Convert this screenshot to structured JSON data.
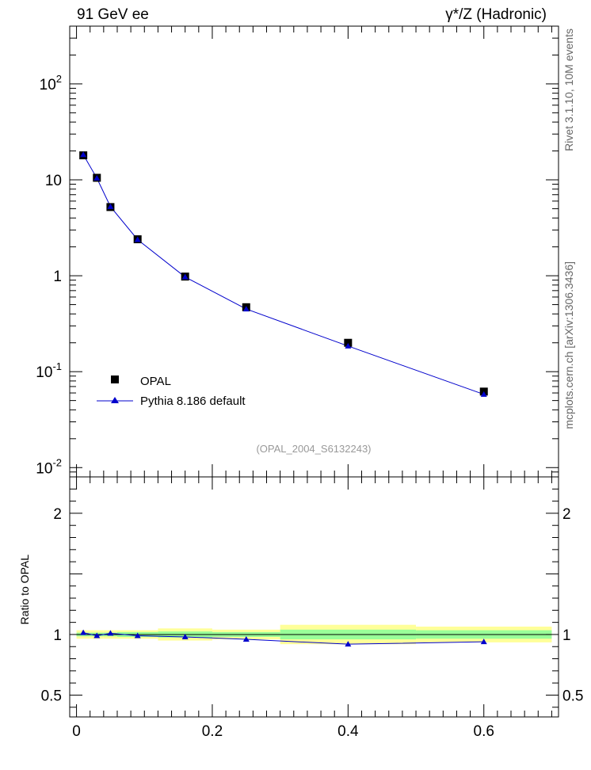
{
  "header": {
    "left_title": "91 GeV ee",
    "right_title": "γ*/Z (Hadronic)"
  },
  "side_labels": {
    "rivet": "Rivet 3.1.10, 10M events",
    "mcplots": "mcplots.cern.ch [arXiv:1306.3436]"
  },
  "watermark": "(OPAL_2004_S6132243)",
  "chart_data": [
    {
      "type": "scatter",
      "panel": "main",
      "y_scale": "log",
      "xlim": [
        -0.01,
        0.71
      ],
      "ylim": [
        0.008,
        400
      ],
      "y_tick_labels": [
        {
          "base": "10",
          "exp": "-2",
          "value": 0.01
        },
        {
          "base": "10",
          "exp": "-1",
          "value": 0.1
        },
        {
          "base": "1",
          "exp": "",
          "value": 1
        },
        {
          "base": "10",
          "exp": "",
          "value": 10
        },
        {
          "base": "10",
          "exp": "2",
          "value": 100
        }
      ],
      "series": [
        {
          "name": "OPAL",
          "marker": "square",
          "color": "#000000",
          "x": [
            0.01,
            0.03,
            0.05,
            0.09,
            0.16,
            0.25,
            0.4,
            0.6
          ],
          "y": [
            18.0,
            10.5,
            5.2,
            2.4,
            0.98,
            0.47,
            0.2,
            0.062
          ]
        },
        {
          "name": "Pythia 8.186 default",
          "marker": "triangle",
          "color": "#0000cc",
          "x": [
            0.01,
            0.03,
            0.05,
            0.09,
            0.16,
            0.25,
            0.4,
            0.6
          ],
          "y": [
            18.3,
            10.4,
            5.25,
            2.38,
            0.97,
            0.45,
            0.185,
            0.058
          ]
        }
      ],
      "legend": "lower-left"
    },
    {
      "type": "line",
      "panel": "ratio",
      "ylabel": "Ratio to OPAL",
      "xlim": [
        -0.01,
        0.71
      ],
      "ylim": [
        0.32,
        2.3
      ],
      "x_tick_labels": [
        "0",
        "0.2",
        "0.4",
        "0.6"
      ],
      "x_ticks": [
        0,
        0.2,
        0.4,
        0.6
      ],
      "y_tick_labels": [
        "0.5",
        "1",
        "2"
      ],
      "y_ticks": [
        0.5,
        1,
        2
      ],
      "bands": [
        {
          "x0": 0.0,
          "x1": 0.02,
          "inner": [
            0.985,
            1.015
          ],
          "outer": [
            0.965,
            1.035
          ]
        },
        {
          "x0": 0.02,
          "x1": 0.04,
          "inner": [
            0.985,
            1.015
          ],
          "outer": [
            0.965,
            1.035
          ]
        },
        {
          "x0": 0.04,
          "x1": 0.06,
          "inner": [
            0.985,
            1.015
          ],
          "outer": [
            0.965,
            1.035
          ]
        },
        {
          "x0": 0.06,
          "x1": 0.12,
          "inner": [
            0.98,
            1.02
          ],
          "outer": [
            0.965,
            1.035
          ]
        },
        {
          "x0": 0.12,
          "x1": 0.2,
          "inner": [
            0.975,
            1.025
          ],
          "outer": [
            0.95,
            1.05
          ]
        },
        {
          "x0": 0.2,
          "x1": 0.3,
          "inner": [
            0.98,
            1.02
          ],
          "outer": [
            0.96,
            1.04
          ]
        },
        {
          "x0": 0.3,
          "x1": 0.5,
          "inner": [
            0.96,
            1.04
          ],
          "outer": [
            0.92,
            1.08
          ]
        },
        {
          "x0": 0.5,
          "x1": 0.7,
          "inner": [
            0.965,
            1.035
          ],
          "outer": [
            0.935,
            1.065
          ]
        }
      ],
      "series": [
        {
          "name": "Pythia 8.186 default",
          "color": "#0000cc",
          "x": [
            0.01,
            0.03,
            0.05,
            0.09,
            0.16,
            0.25,
            0.4,
            0.6
          ],
          "y": [
            1.015,
            0.99,
            1.01,
            0.99,
            0.98,
            0.96,
            0.92,
            0.94
          ]
        }
      ],
      "colors": {
        "inner_band": "#99ff99",
        "outer_band": "#ffff99",
        "data_line": "#000000"
      }
    }
  ]
}
